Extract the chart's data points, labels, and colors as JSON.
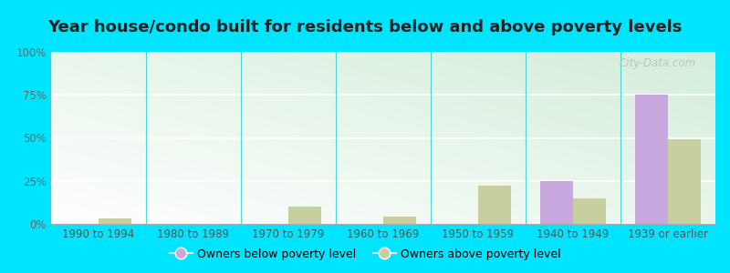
{
  "title": "Year house/condo built for residents below and above poverty levels",
  "categories": [
    "1990 to 1994",
    "1980 to 1989",
    "1970 to 1979",
    "1960 to 1969",
    "1950 to 1959",
    "1940 to 1949",
    "1939 or earlier"
  ],
  "below_poverty": [
    0,
    0,
    0,
    0,
    0,
    25,
    75
  ],
  "above_poverty": [
    3,
    0,
    10,
    4,
    22,
    15,
    49
  ],
  "below_color": "#c9a8e0",
  "above_color": "#c8cf9e",
  "background_outer": "#00e5ff",
  "ylim": [
    0,
    100
  ],
  "yticks": [
    0,
    25,
    50,
    75,
    100
  ],
  "yticklabels": [
    "0%",
    "25%",
    "50%",
    "75%",
    "100%"
  ],
  "legend_below": "Owners below poverty level",
  "legend_above": "Owners above poverty level",
  "bar_width": 0.35,
  "title_fontsize": 13,
  "tick_fontsize": 8.5,
  "legend_fontsize": 9,
  "watermark": "City-Data.com"
}
